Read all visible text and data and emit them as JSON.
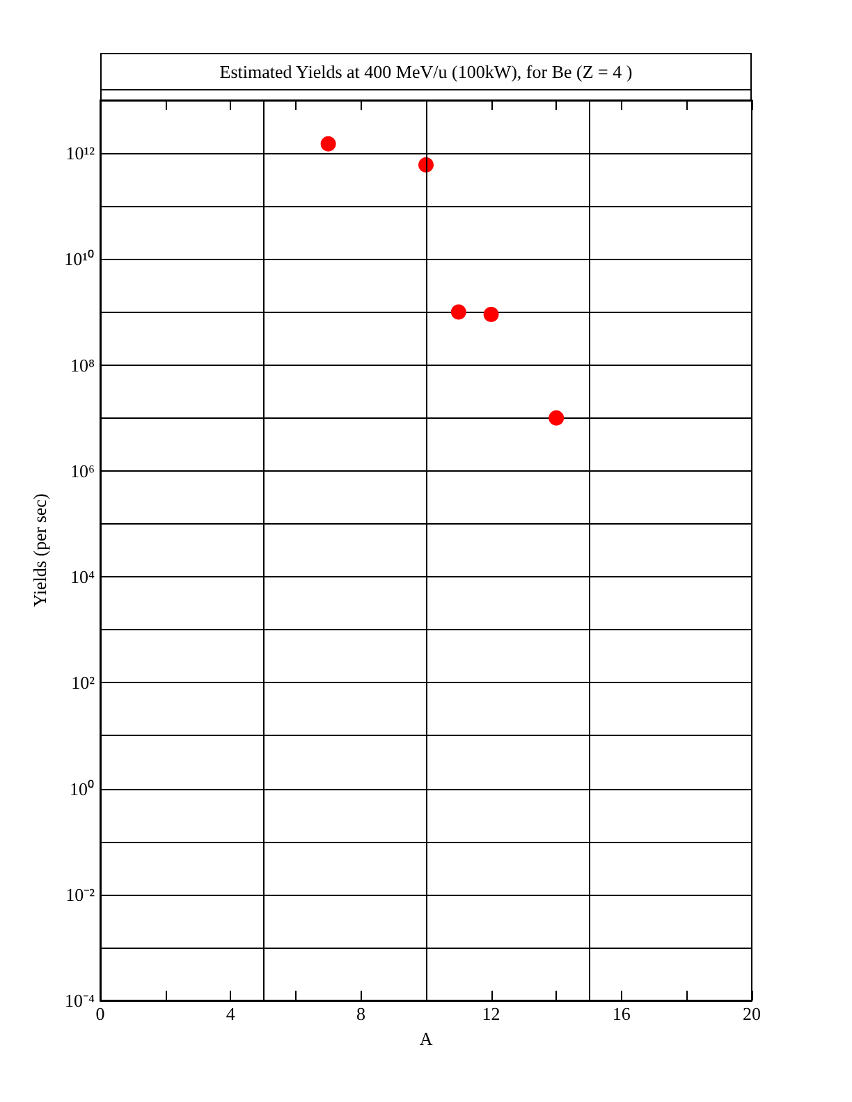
{
  "chart_data": {
    "type": "scatter",
    "title": "Estimated Yields at 400 MeV/u (100kW), for Be (Z = 4 )",
    "xlabel": "A",
    "ylabel": "Yields (per sec)",
    "x": [
      7,
      10,
      11,
      12,
      14
    ],
    "values": [
      1500000000000.0,
      600000000000.0,
      1000000000.0,
      900000000.0,
      10000000.0
    ],
    "color": "#ff0000",
    "marker": "circle",
    "xlim": [
      0,
      20
    ],
    "xticks": [
      0,
      {
        "value": 2,
        "label": null
      },
      4,
      {
        "value": 6,
        "label": null
      },
      8,
      {
        "value": 10,
        "label": null
      },
      12,
      {
        "value": 14,
        "label": null
      },
      16,
      {
        "value": 18,
        "label": null
      },
      20
    ],
    "ylim": [
      0.0001,
      10000000000000.0
    ],
    "log": "y",
    "yticks": [
      {
        "value": 0.0001,
        "label": "10⁻⁴"
      },
      {
        "value": 0.001,
        "label": null
      },
      {
        "value": 0.01,
        "label": "10⁻²"
      },
      {
        "value": 0.1,
        "label": null
      },
      {
        "value": 1,
        "label": "10⁰"
      },
      {
        "value": 10,
        "label": null
      },
      {
        "value": 100,
        "label": "10²"
      },
      {
        "value": 1000,
        "label": null
      },
      {
        "value": 10000,
        "label": "10⁴"
      },
      {
        "value": 100000,
        "label": null
      },
      {
        "value": 1000000,
        "label": "10⁶"
      },
      {
        "value": 10000000,
        "label": null
      },
      {
        "value": 100000000,
        "label": "10⁸"
      },
      {
        "value": 1000000000,
        "label": null
      },
      {
        "value": 10000000000,
        "label": "10¹⁰"
      },
      {
        "value": 100000000000,
        "label": null
      },
      {
        "value": 1000000000000,
        "label": "10¹²"
      }
    ],
    "grid": "y",
    "ref_lines": [
      {
        "axis": "x",
        "value": 5
      },
      {
        "axis": "x",
        "value": 10
      },
      {
        "axis": "x",
        "value": 15
      }
    ]
  }
}
